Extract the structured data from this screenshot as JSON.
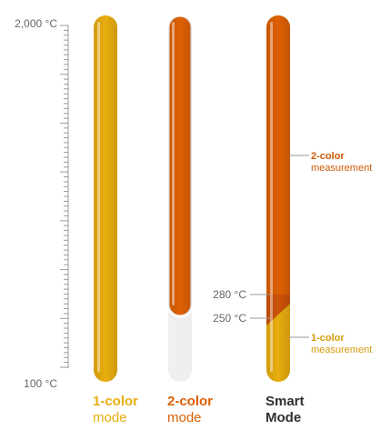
{
  "scale": {
    "top_label": "2,000 °C",
    "bottom_label": "100 °C"
  },
  "columns": [
    {
      "bold": "1-color",
      "light": "mode",
      "color": "#e8ad0e"
    },
    {
      "bold": "2-color",
      "light": "mode",
      "color": "#dd6004"
    },
    {
      "bold": "Smart",
      "light": "Mode",
      "color": "#303030"
    }
  ],
  "thresholds": {
    "t280": "280 °C",
    "t250": "250 °C"
  },
  "annotations": {
    "upper": {
      "bold": "2-color",
      "light": "measurement"
    },
    "lower": {
      "bold": "1-color",
      "light": "measurement"
    }
  },
  "colors": {
    "yellow": "#e8ad0e",
    "orange": "#dd6004",
    "inactive": "#efefef",
    "axis": "#9a9a9a",
    "annotation_orange": "#cf5a08",
    "annotation_yellow": "#d79a0b"
  }
}
